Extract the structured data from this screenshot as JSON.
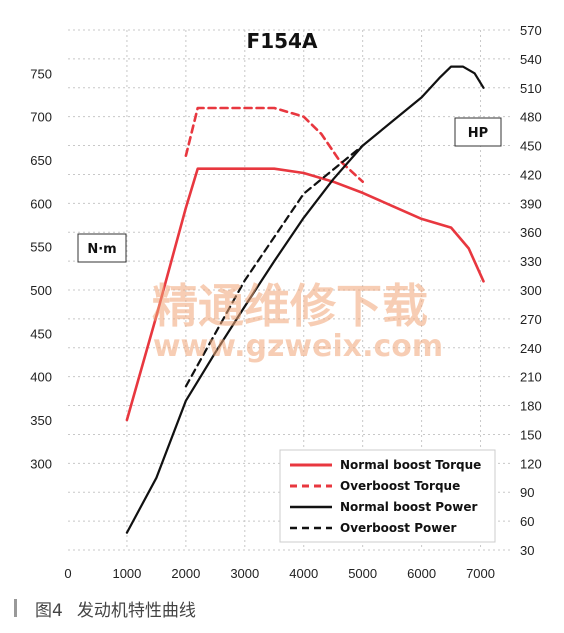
{
  "figure_number": "图4",
  "caption": "发动机特性曲线",
  "watermark": {
    "line1": "精通维修下载",
    "line2": "www.gzweix.com"
  },
  "chart_data": {
    "type": "line",
    "title": "F154A",
    "xlabel": "",
    "xlim": [
      0,
      7500
    ],
    "x_ticks": [
      0,
      1000,
      2000,
      3000,
      4000,
      5000,
      6000,
      7000
    ],
    "y_left": {
      "unit_label": "N·m",
      "lim": [
        200,
        800
      ],
      "ticks": [
        300,
        350,
        400,
        450,
        500,
        550,
        600,
        650,
        700,
        750
      ]
    },
    "y_right": {
      "unit_label": "HP",
      "lim": [
        30,
        570
      ],
      "ticks": [
        30,
        60,
        90,
        120,
        150,
        180,
        210,
        240,
        270,
        300,
        330,
        360,
        390,
        420,
        450,
        480,
        510,
        540,
        570
      ]
    },
    "grid": "dotted",
    "legend_position": "bottom-right",
    "series": [
      {
        "name": "Normal boost Torque",
        "axis": "left",
        "color": "#e8373f",
        "dash": "solid",
        "points": [
          [
            1000,
            350
          ],
          [
            1500,
            470
          ],
          [
            2000,
            595
          ],
          [
            2200,
            640
          ],
          [
            2500,
            640
          ],
          [
            3000,
            640
          ],
          [
            3500,
            640
          ],
          [
            4000,
            635
          ],
          [
            4500,
            625
          ],
          [
            5000,
            612
          ],
          [
            5500,
            597
          ],
          [
            6000,
            582
          ],
          [
            6500,
            572
          ],
          [
            6800,
            548
          ],
          [
            7050,
            510
          ]
        ]
      },
      {
        "name": "Overboost Torque",
        "axis": "left",
        "color": "#e8373f",
        "dash": "dashed",
        "points": [
          [
            2000,
            655
          ],
          [
            2200,
            710
          ],
          [
            2500,
            710
          ],
          [
            3000,
            710
          ],
          [
            3500,
            710
          ],
          [
            4000,
            700
          ],
          [
            4300,
            680
          ],
          [
            4600,
            650
          ],
          [
            5000,
            625
          ]
        ]
      },
      {
        "name": "Normal boost Power",
        "axis": "right",
        "color": "#111111",
        "dash": "solid",
        "points": [
          [
            1000,
            48
          ],
          [
            1500,
            105
          ],
          [
            2000,
            185
          ],
          [
            2500,
            235
          ],
          [
            3000,
            283
          ],
          [
            3500,
            330
          ],
          [
            4000,
            375
          ],
          [
            4500,
            415
          ],
          [
            5000,
            450
          ],
          [
            5500,
            475
          ],
          [
            6000,
            500
          ],
          [
            6300,
            520
          ],
          [
            6500,
            532
          ],
          [
            6700,
            532
          ],
          [
            6900,
            525
          ],
          [
            7050,
            510
          ]
        ]
      },
      {
        "name": "Overboost Power",
        "axis": "right",
        "color": "#111111",
        "dash": "dashed",
        "points": [
          [
            2000,
            200
          ],
          [
            2500,
            255
          ],
          [
            3000,
            310
          ],
          [
            3500,
            355
          ],
          [
            4000,
            400
          ],
          [
            4500,
            425
          ],
          [
            5000,
            450
          ]
        ]
      }
    ]
  }
}
